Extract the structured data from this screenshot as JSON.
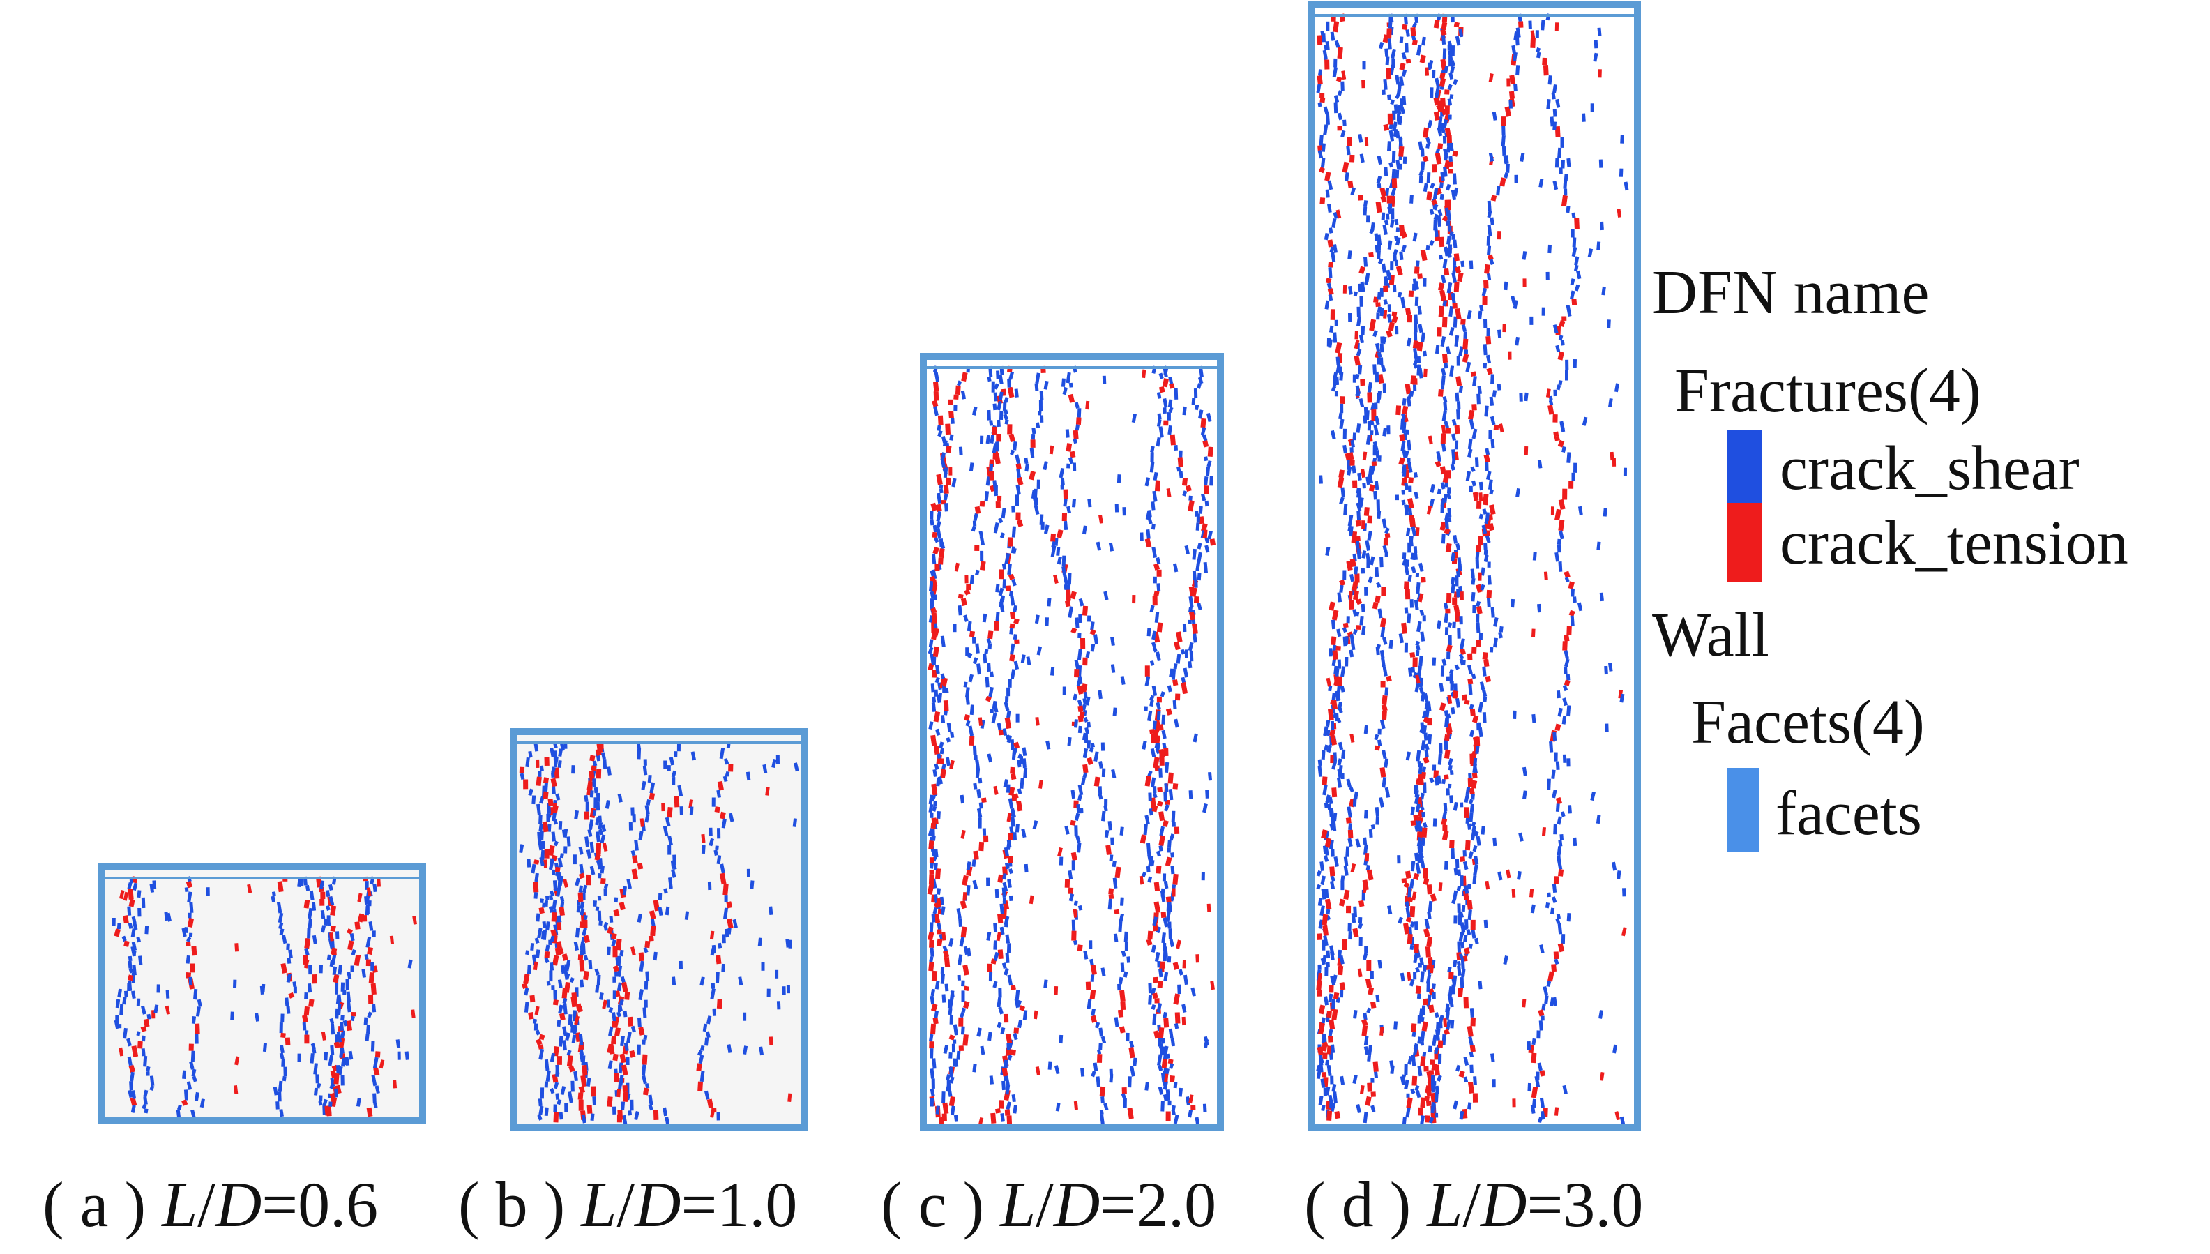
{
  "captions": [
    {
      "prefix": "( a ) ",
      "var1": "L",
      "sep": "/",
      "var2": "D",
      "value": "=0.6"
    },
    {
      "prefix": "( b ) ",
      "var1": "L",
      "sep": "/",
      "var2": "D",
      "value": "=1.0"
    },
    {
      "prefix": "( c ) ",
      "var1": "L",
      "sep": "/",
      "var2": "D",
      "value": "=2.0"
    },
    {
      "prefix": "( d ) ",
      "var1": "L",
      "sep": "/",
      "var2": "D",
      "value": "=3.0"
    }
  ],
  "legend": {
    "title": "DFN name",
    "group1": "Fractures(4)",
    "item1": "crack_shear",
    "item2": "crack_tension",
    "title2": "Wall",
    "group2": "Facets(4)",
    "item3": "facets"
  }
}
